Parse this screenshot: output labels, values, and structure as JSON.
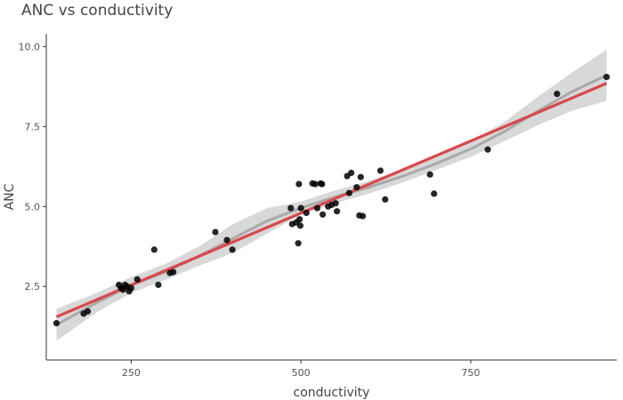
{
  "chart_data": {
    "type": "scatter",
    "title": "ANC vs conductivity",
    "xlabel": "conductivity",
    "ylabel": "ANC",
    "xlim": [
      125,
      965
    ],
    "ylim": [
      0.2,
      10.4
    ],
    "x_ticks": [
      250,
      500,
      750
    ],
    "y_ticks": [
      2.5,
      5.0,
      7.5,
      10.0
    ],
    "x_tick_labels": [
      "250",
      "500",
      "750"
    ],
    "y_tick_labels": [
      "2.5",
      "5.0",
      "7.5",
      "10.0"
    ],
    "grid": false,
    "points": [
      {
        "x": 140,
        "y": 1.35
      },
      {
        "x": 180,
        "y": 1.65
      },
      {
        "x": 186,
        "y": 1.72
      },
      {
        "x": 232,
        "y": 2.55
      },
      {
        "x": 235,
        "y": 2.45
      },
      {
        "x": 238,
        "y": 2.4
      },
      {
        "x": 241,
        "y": 2.55
      },
      {
        "x": 244,
        "y": 2.5
      },
      {
        "x": 247,
        "y": 2.35
      },
      {
        "x": 250,
        "y": 2.45
      },
      {
        "x": 259,
        "y": 2.72
      },
      {
        "x": 284,
        "y": 3.65
      },
      {
        "x": 290,
        "y": 2.55
      },
      {
        "x": 307,
        "y": 2.92
      },
      {
        "x": 312,
        "y": 2.95
      },
      {
        "x": 374,
        "y": 4.2
      },
      {
        "x": 391,
        "y": 3.95
      },
      {
        "x": 399,
        "y": 3.65
      },
      {
        "x": 485,
        "y": 4.95
      },
      {
        "x": 487,
        "y": 4.45
      },
      {
        "x": 493,
        "y": 4.5
      },
      {
        "x": 496,
        "y": 3.85
      },
      {
        "x": 497,
        "y": 5.7
      },
      {
        "x": 498,
        "y": 4.6
      },
      {
        "x": 499,
        "y": 4.4
      },
      {
        "x": 500,
        "y": 4.95
      },
      {
        "x": 508,
        "y": 4.8
      },
      {
        "x": 517,
        "y": 5.72
      },
      {
        "x": 521,
        "y": 5.7
      },
      {
        "x": 524,
        "y": 4.95
      },
      {
        "x": 529,
        "y": 5.72
      },
      {
        "x": 531,
        "y": 5.7
      },
      {
        "x": 532,
        "y": 4.75
      },
      {
        "x": 540,
        "y": 5.0
      },
      {
        "x": 545,
        "y": 5.05
      },
      {
        "x": 551,
        "y": 5.1
      },
      {
        "x": 553,
        "y": 4.85
      },
      {
        "x": 568,
        "y": 5.95
      },
      {
        "x": 571,
        "y": 5.42
      },
      {
        "x": 574,
        "y": 6.05
      },
      {
        "x": 582,
        "y": 5.6
      },
      {
        "x": 586,
        "y": 4.72
      },
      {
        "x": 588,
        "y": 5.92
      },
      {
        "x": 591,
        "y": 4.7
      },
      {
        "x": 617,
        "y": 6.12
      },
      {
        "x": 624,
        "y": 5.22
      },
      {
        "x": 690,
        "y": 6.0
      },
      {
        "x": 696,
        "y": 5.4
      },
      {
        "x": 775,
        "y": 6.78
      },
      {
        "x": 877,
        "y": 8.52
      },
      {
        "x": 950,
        "y": 9.05
      }
    ],
    "linear_fit": {
      "x": [
        140,
        950
      ],
      "y": [
        1.55,
        8.85
      ]
    },
    "loess_fit": {
      "x": [
        140,
        200,
        250,
        300,
        350,
        400,
        450,
        500,
        550,
        600,
        650,
        700,
        750,
        800,
        850,
        900,
        950
      ],
      "y": [
        1.3,
        2.0,
        2.55,
        2.95,
        3.45,
        4.0,
        4.55,
        4.95,
        5.3,
        5.6,
        5.95,
        6.35,
        6.8,
        7.35,
        8.0,
        8.6,
        9.1
      ],
      "band_lower": [
        0.8,
        1.7,
        2.3,
        2.7,
        3.15,
        3.55,
        4.15,
        4.75,
        5.1,
        5.4,
        5.75,
        6.15,
        6.55,
        7.05,
        7.55,
        8.0,
        8.3
      ],
      "band_upper": [
        1.8,
        2.3,
        2.8,
        3.2,
        3.75,
        4.45,
        4.95,
        5.15,
        5.5,
        5.8,
        6.15,
        6.55,
        7.05,
        7.65,
        8.45,
        9.2,
        9.9
      ]
    },
    "colors": {
      "points": "#000000",
      "linear_fit": "#d9484b",
      "loess_fit": "#a9a9a9",
      "band": "#c8c8c8",
      "axis": "#333333",
      "text": "#444444"
    }
  }
}
